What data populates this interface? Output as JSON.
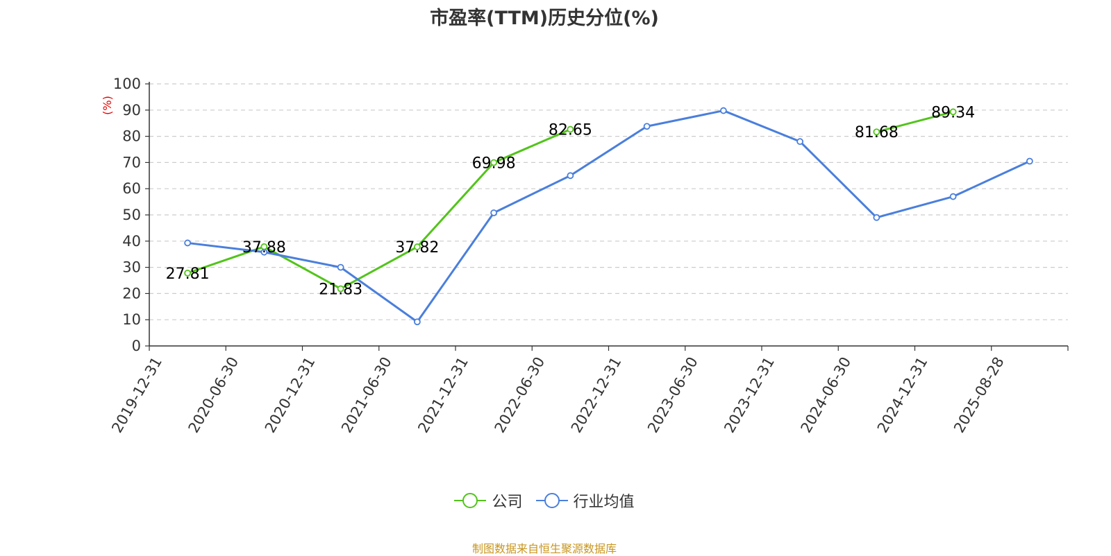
{
  "chart_data": {
    "type": "line",
    "title": "市盈率(TTM)历史分位(%)",
    "ylabel": "(%)",
    "ylim": [
      0,
      100
    ],
    "yticks": [
      0,
      10,
      20,
      30,
      40,
      50,
      60,
      70,
      80,
      90,
      100
    ],
    "grid": "horizontal dashed",
    "legend_position": "bottom",
    "categories": [
      "2019-12-31",
      "2020-06-30",
      "2020-12-31",
      "2021-06-30",
      "2021-12-31",
      "2022-06-30",
      "2022-12-31",
      "2023-06-30",
      "2023-12-31",
      "2024-06-30",
      "2024-12-31",
      "2025-08-28"
    ],
    "series": [
      {
        "name": "公司",
        "color": "#52c41a",
        "values": [
          27.81,
          37.88,
          21.83,
          37.82,
          69.98,
          82.65,
          null,
          null,
          null,
          81.68,
          89.34,
          null
        ],
        "labels": [
          "27.81",
          "37.88",
          "21.83",
          "37.82",
          "69.98",
          "82.65",
          null,
          null,
          null,
          "81.68",
          "89.34",
          null
        ]
      },
      {
        "name": "行业均值",
        "color": "#4a7fdc",
        "values": [
          39.3,
          35.8,
          30.0,
          9.2,
          50.8,
          65.0,
          83.8,
          89.8,
          78.0,
          49.0,
          57.0,
          70.5
        ]
      }
    ]
  },
  "source_note": "制图数据来自恒生聚源数据库"
}
